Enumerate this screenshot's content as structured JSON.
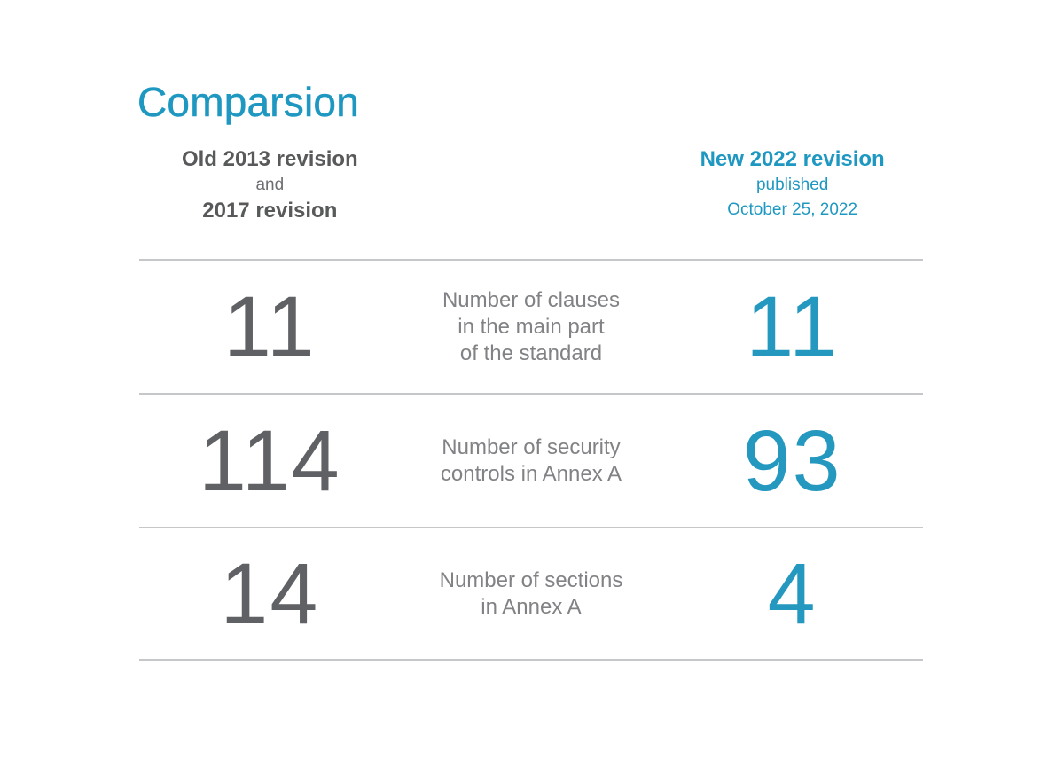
{
  "title": "Comparsion",
  "colors": {
    "accent_teal": "#1f98c1",
    "number_teal": "#2598c0",
    "heading_gray": "#58595b",
    "subheading_gray": "#6d6e71",
    "number_gray": "#606164",
    "label_gray": "#818285",
    "divider_gray": "#c6c7c8"
  },
  "table": {
    "header": {
      "old": {
        "title": "Old 2013 revision",
        "conjunction": "and",
        "subtitle": "2017 revision"
      },
      "new": {
        "title": "New 2022 revision",
        "published": "published",
        "date": "October 25, 2022"
      }
    },
    "rows": [
      {
        "old": "11",
        "label": "Number of clauses\nin the main part\nof the standard",
        "new": "11"
      },
      {
        "old": "114",
        "label": "Number of security\ncontrols in Annex A",
        "new": "93"
      },
      {
        "old": "14",
        "label": "Number of sections\nin Annex A",
        "new": "4"
      }
    ]
  }
}
